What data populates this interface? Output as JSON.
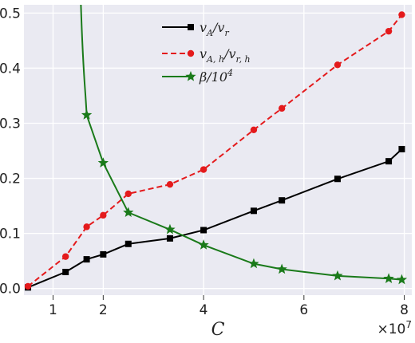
{
  "chart_data": {
    "type": "line",
    "xlabel": "C",
    "ylabel": "",
    "x_multiplier_label": "×10",
    "x_multiplier_exp": "7",
    "xlim": [
      0.42,
      8.15
    ],
    "ylim": [
      -0.012,
      0.515
    ],
    "xticks": [
      1,
      2,
      4,
      6,
      8
    ],
    "xtick_labels": [
      "1",
      "2",
      "4",
      "6",
      "8"
    ],
    "yticks": [
      0.0,
      0.1,
      0.2,
      0.3,
      0.4,
      0.5
    ],
    "ytick_labels": [
      "0.0",
      "0.1",
      "0.2",
      "0.3",
      "0.4",
      "0.5"
    ],
    "grid": true,
    "legend_position": "top-center",
    "series": [
      {
        "name": "v_A/v_r",
        "legend": {
          "main": "v",
          "sub": "A",
          "slash": "/v",
          "sub2": "r"
        },
        "color": "#000000",
        "marker": "square",
        "linestyle": "solid",
        "x": [
          0.5,
          1.25,
          1.67,
          2.0,
          2.5,
          3.33,
          4.0,
          5.0,
          5.56,
          6.67,
          7.69,
          7.95
        ],
        "values": [
          0.002,
          0.03,
          0.053,
          0.062,
          0.081,
          0.091,
          0.106,
          0.141,
          0.16,
          0.199,
          0.231,
          0.253
        ]
      },
      {
        "name": "v_{A,h}/v_{r,h}",
        "legend": {
          "main": "v",
          "sub": "A, h",
          "slash": "/v",
          "sub2": "r, h"
        },
        "color": "#e41a1c",
        "marker": "circle",
        "linestyle": "dashed",
        "x": [
          0.5,
          1.25,
          1.67,
          2.0,
          2.5,
          3.33,
          4.0,
          5.0,
          5.56,
          6.67,
          7.69,
          7.95
        ],
        "values": [
          0.004,
          0.058,
          0.112,
          0.133,
          0.172,
          0.189,
          0.216,
          0.288,
          0.327,
          0.406,
          0.467,
          0.497
        ]
      },
      {
        "name": "β/10^4",
        "legend": {
          "main": "β/10",
          "sup": "4"
        },
        "color": "#1a7a1a",
        "marker": "star",
        "linestyle": "solid",
        "curve_start": {
          "x": 1.55,
          "y": 0.53
        },
        "x": [
          1.67,
          2.0,
          2.5,
          3.33,
          4.0,
          5.0,
          5.56,
          6.67,
          7.69,
          7.95
        ],
        "values": [
          0.315,
          0.228,
          0.138,
          0.107,
          0.079,
          0.045,
          0.035,
          0.023,
          0.018,
          0.016
        ]
      }
    ]
  }
}
